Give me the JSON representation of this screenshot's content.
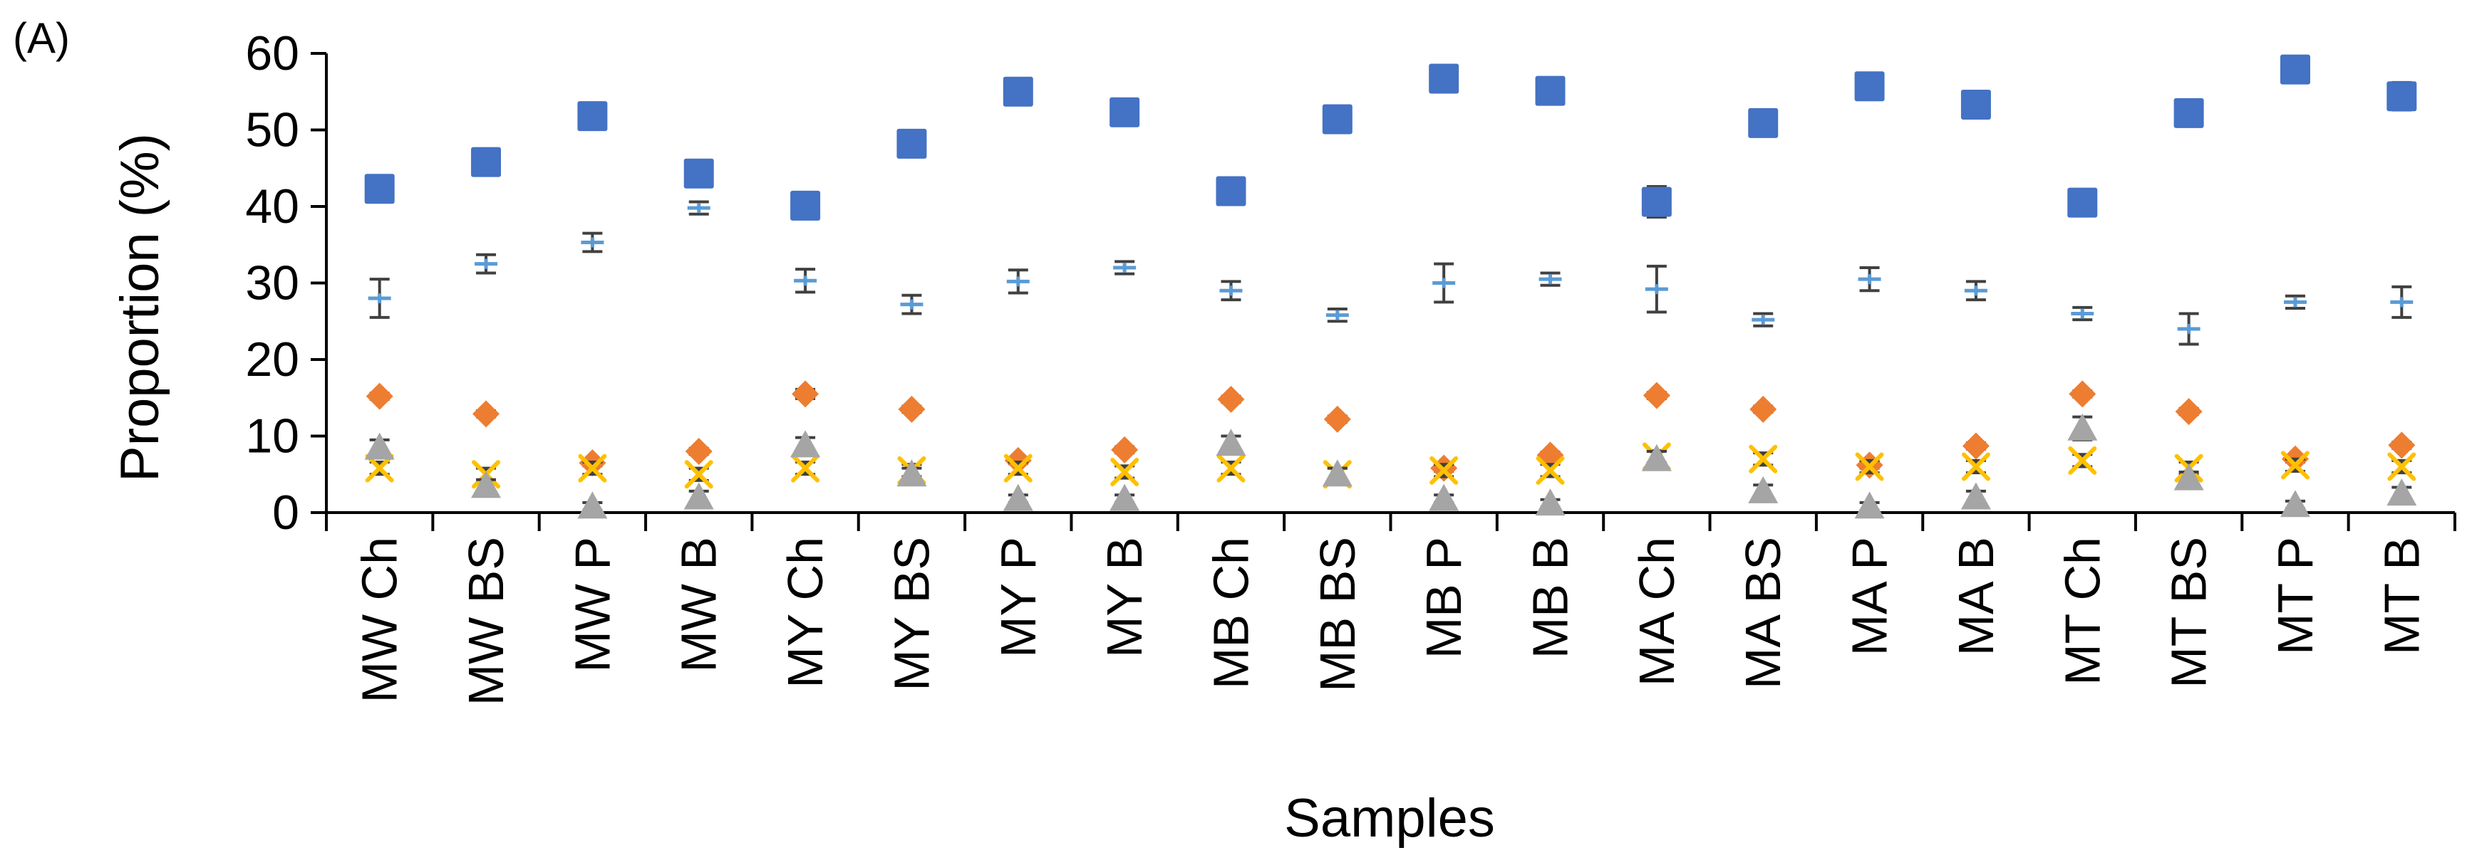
{
  "chart_data": {
    "type": "scatter",
    "panel_label": "(A)",
    "title": "",
    "xlabel": "Samples",
    "ylabel": "Proportion (%)",
    "ylim": [
      0,
      60
    ],
    "yticks": [
      0,
      10,
      20,
      30,
      40,
      50,
      60
    ],
    "grid": false,
    "legend": "none",
    "categories": [
      "MW Ch",
      "MW BS",
      "MW P",
      "MW B",
      "MY Ch",
      "MY BS",
      "MY P",
      "MY B",
      "MB Ch",
      "MB BS",
      "MB P",
      "MB B",
      "MA Ch",
      "MA BS",
      "MA P",
      "MA B",
      "MT Ch",
      "MT BS",
      "MT P",
      "MT B"
    ],
    "series": [
      {
        "name": "square",
        "marker": "square",
        "color": "#4472C4",
        "values": [
          42.3,
          45.8,
          51.8,
          44.3,
          40.1,
          48.2,
          55.0,
          52.3,
          42.0,
          51.4,
          56.7,
          55.1,
          40.6,
          50.9,
          55.7,
          53.3,
          40.5,
          52.2,
          57.9,
          54.4
        ],
        "errors": [
          0.5,
          0.5,
          0.5,
          0.5,
          0.5,
          0.5,
          0.5,
          0.5,
          0.5,
          0.5,
          0.5,
          0.5,
          2.0,
          0.5,
          1.5,
          0.5,
          0.5,
          0.5,
          0.5,
          1.8
        ]
      },
      {
        "name": "dash",
        "marker": "dash",
        "color": "#5B9BD5",
        "values": [
          28.0,
          32.5,
          35.3,
          39.8,
          30.3,
          27.2,
          30.2,
          32.0,
          29.0,
          25.8,
          30.0,
          30.5,
          29.2,
          25.2,
          30.5,
          29.0,
          26.0,
          24.0,
          27.5,
          27.5
        ],
        "errors": [
          2.5,
          1.2,
          1.2,
          0.8,
          1.5,
          1.2,
          1.5,
          0.8,
          1.2,
          0.8,
          2.5,
          0.8,
          3.0,
          0.8,
          1.5,
          1.2,
          0.8,
          2.0,
          0.8,
          2.0
        ]
      },
      {
        "name": "diamond",
        "marker": "diamond",
        "color": "#ED7D31",
        "values": [
          15.2,
          12.9,
          6.5,
          8.0,
          15.5,
          13.5,
          6.8,
          8.2,
          14.8,
          12.2,
          5.8,
          7.5,
          15.3,
          13.5,
          6.2,
          8.7,
          15.5,
          13.2,
          7.0,
          8.8
        ],
        "errors": [
          0.4,
          0.4,
          0.4,
          0.4,
          0.6,
          0.4,
          0.4,
          0.4,
          0.4,
          0.4,
          0.4,
          0.4,
          0.4,
          0.4,
          0.4,
          0.4,
          0.4,
          0.4,
          0.4,
          0.4
        ]
      },
      {
        "name": "cross",
        "marker": "x",
        "color": "#FFC000",
        "values": [
          5.8,
          5.0,
          5.8,
          5.0,
          5.8,
          5.5,
          5.8,
          5.3,
          5.8,
          5.0,
          5.5,
          5.5,
          7.3,
          7.0,
          6.0,
          6.0,
          6.8,
          5.8,
          6.2,
          6.0
        ],
        "errors": [
          0.8,
          0.8,
          0.8,
          0.8,
          0.8,
          0.8,
          0.8,
          0.8,
          0.8,
          0.8,
          0.8,
          0.8,
          0.8,
          0.8,
          0.8,
          0.8,
          0.8,
          0.8,
          0.8,
          0.8
        ]
      },
      {
        "name": "triangle",
        "marker": "triangle",
        "color": "#A5A5A5",
        "values": [
          8.5,
          3.5,
          0.8,
          2.0,
          8.8,
          5.0,
          1.8,
          1.8,
          9.0,
          5.0,
          1.8,
          1.2,
          7.0,
          2.8,
          0.8,
          2.0,
          11.0,
          4.5,
          1.0,
          2.5
        ],
        "errors": [
          1.0,
          0.8,
          0.5,
          0.8,
          1.0,
          0.8,
          0.5,
          0.5,
          1.0,
          0.8,
          0.5,
          0.5,
          1.0,
          0.8,
          0.5,
          0.8,
          1.5,
          0.8,
          0.5,
          0.8
        ]
      }
    ]
  }
}
